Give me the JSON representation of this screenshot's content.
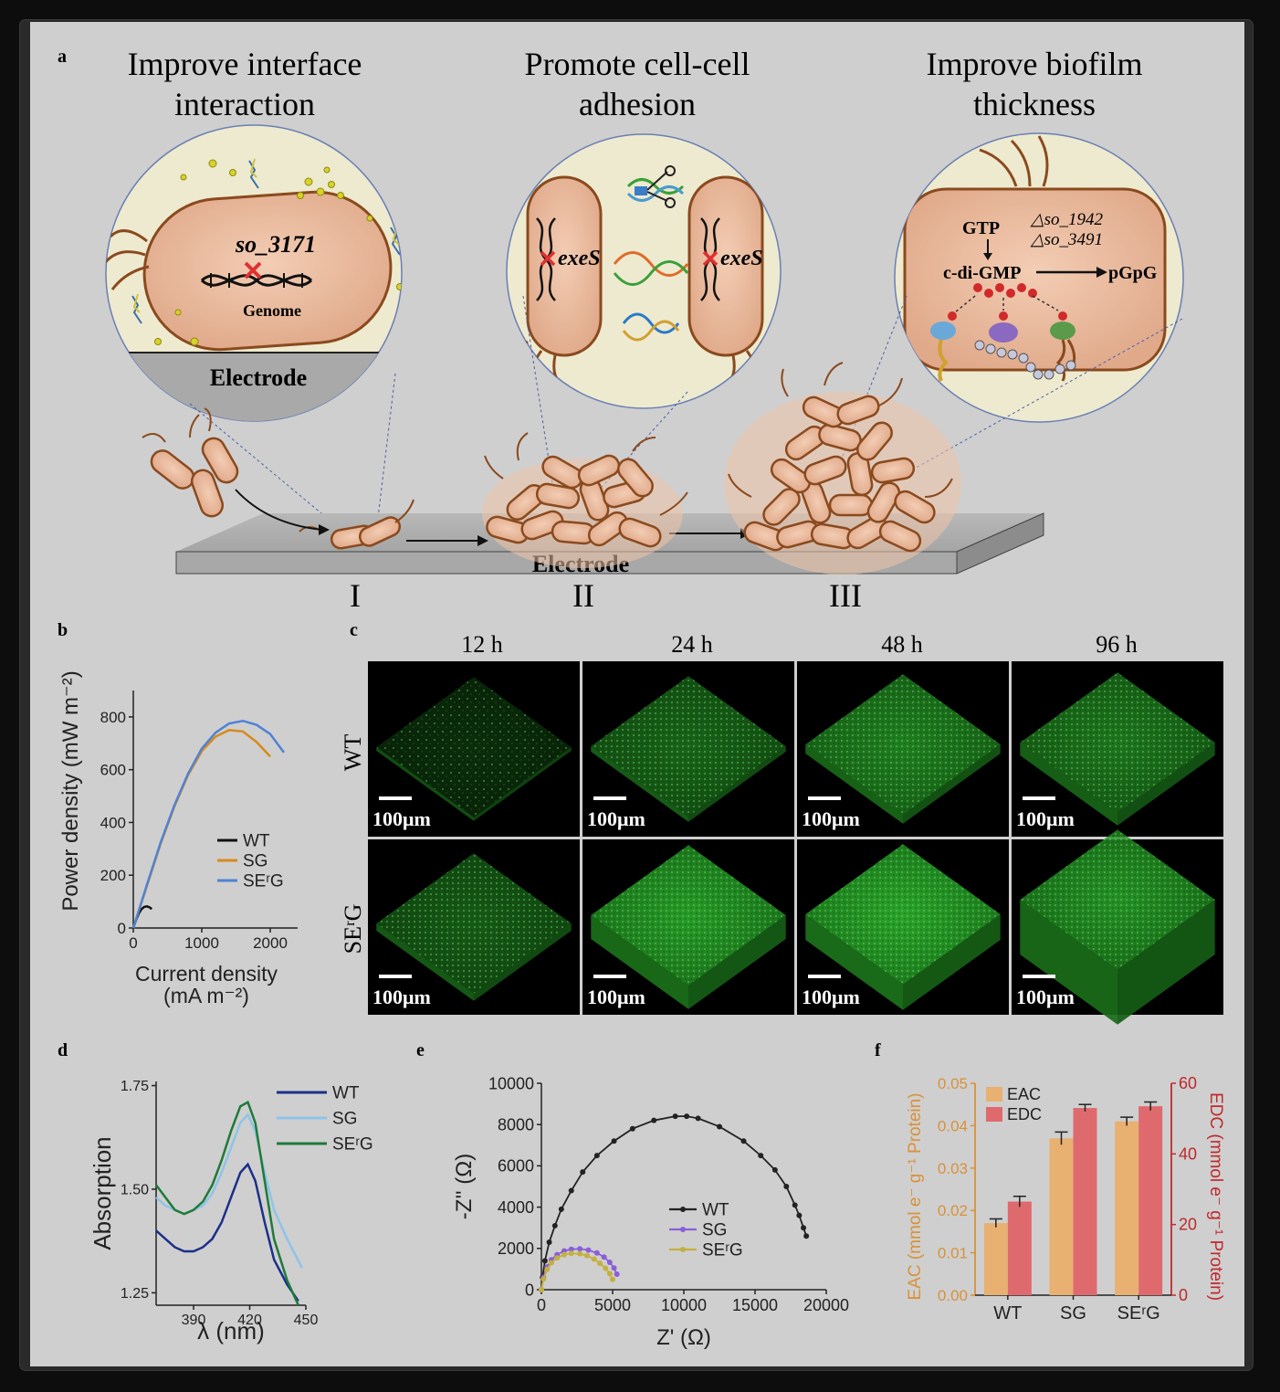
{
  "panel_a": {
    "letter": "a",
    "titles": [
      [
        "Improve interface",
        "interaction"
      ],
      [
        "Promote cell-cell",
        "adhesion"
      ],
      [
        "Improve biofilm",
        "thickness"
      ]
    ],
    "circle1": {
      "gene": "so_3171",
      "genome": "Genome",
      "electrode": "Electrode"
    },
    "circle2": {
      "gene_left": "exeS",
      "gene_right": "exeS"
    },
    "circle3": {
      "gtp": "GTP",
      "del1": "△so_1942",
      "del2": "△so_3491",
      "cdigmp": "c-di-GMP",
      "pgpg": "pGpG"
    },
    "electrode_label": "Electrode",
    "stages": [
      "I",
      "II",
      "III"
    ]
  },
  "panel_b": {
    "letter": "b",
    "chart_data": {
      "type": "line",
      "xlabel": "Current density (mA m⁻²)",
      "xlabel_lines": [
        "Current density",
        "(mA m⁻²)"
      ],
      "ylabel": "Power density (mW m⁻²)",
      "xlim": [
        0,
        2400
      ],
      "ylim": [
        0,
        900
      ],
      "x_ticks": [
        "0",
        "1000",
        "2000"
      ],
      "y_ticks": [
        "0",
        "200",
        "400",
        "600",
        "800"
      ],
      "series": [
        {
          "name": "WT",
          "color": "#111111",
          "points": [
            [
              0,
              0
            ],
            [
              40,
              30
            ],
            [
              80,
              55
            ],
            [
              120,
              72
            ],
            [
              160,
              80
            ],
            [
              200,
              82
            ],
            [
              240,
              78
            ],
            [
              270,
              72
            ]
          ]
        },
        {
          "name": "SG",
          "color": "#d88a1a",
          "points": [
            [
              0,
              0
            ],
            [
              200,
              160
            ],
            [
              400,
              320
            ],
            [
              600,
              460
            ],
            [
              800,
              580
            ],
            [
              1000,
              670
            ],
            [
              1200,
              725
            ],
            [
              1400,
              750
            ],
            [
              1600,
              745
            ],
            [
              1800,
              705
            ],
            [
              2000,
              650
            ]
          ]
        },
        {
          "name": "SEʳG",
          "color": "#4f82d6",
          "points": [
            [
              0,
              0
            ],
            [
              200,
              165
            ],
            [
              400,
              325
            ],
            [
              600,
              465
            ],
            [
              800,
              585
            ],
            [
              1000,
              680
            ],
            [
              1200,
              740
            ],
            [
              1400,
              775
            ],
            [
              1600,
              785
            ],
            [
              1800,
              770
            ],
            [
              2000,
              735
            ],
            [
              2200,
              665
            ]
          ]
        }
      ]
    }
  },
  "panel_c": {
    "letter": "c",
    "times": [
      "12 h",
      "24 h",
      "48 h",
      "96 h"
    ],
    "rows": [
      "WT",
      "SEʳG"
    ],
    "scale_label": "100μm"
  },
  "panel_d": {
    "letter": "d",
    "chart_data": {
      "type": "line",
      "xlabel": "λ (nm)",
      "ylabel": "Absorption",
      "xlim": [
        370,
        450
      ],
      "ylim": [
        1.22,
        1.76
      ],
      "x_ticks": [
        "390",
        "420",
        "450"
      ],
      "y_ticks": [
        "1.25",
        "1.50",
        "1.75"
      ],
      "series": [
        {
          "name": "WT",
          "color": "#1b2f8a",
          "points": [
            [
              370,
              1.4
            ],
            [
              375,
              1.38
            ],
            [
              380,
              1.36
            ],
            [
              385,
              1.35
            ],
            [
              390,
              1.35
            ],
            [
              395,
              1.36
            ],
            [
              400,
              1.38
            ],
            [
              405,
              1.42
            ],
            [
              410,
              1.48
            ],
            [
              415,
              1.54
            ],
            [
              419,
              1.56
            ],
            [
              423,
              1.52
            ],
            [
              428,
              1.42
            ],
            [
              433,
              1.33
            ],
            [
              440,
              1.27
            ],
            [
              446,
              1.23
            ]
          ]
        },
        {
          "name": "SG",
          "color": "#8ec4e8",
          "points": [
            [
              370,
              1.48
            ],
            [
              375,
              1.46
            ],
            [
              380,
              1.45
            ],
            [
              385,
              1.44
            ],
            [
              390,
              1.45
            ],
            [
              395,
              1.46
            ],
            [
              400,
              1.49
            ],
            [
              405,
              1.54
            ],
            [
              410,
              1.6
            ],
            [
              415,
              1.66
            ],
            [
              419,
              1.68
            ],
            [
              423,
              1.64
            ],
            [
              428,
              1.54
            ],
            [
              433,
              1.45
            ],
            [
              440,
              1.38
            ],
            [
              448,
              1.31
            ]
          ]
        },
        {
          "name": "SEʳG",
          "color": "#1f7a3a",
          "points": [
            [
              370,
              1.51
            ],
            [
              375,
              1.48
            ],
            [
              380,
              1.45
            ],
            [
              385,
              1.44
            ],
            [
              390,
              1.45
            ],
            [
              395,
              1.47
            ],
            [
              400,
              1.51
            ],
            [
              405,
              1.57
            ],
            [
              410,
              1.64
            ],
            [
              415,
              1.7
            ],
            [
              419,
              1.71
            ],
            [
              423,
              1.66
            ],
            [
              428,
              1.52
            ],
            [
              433,
              1.38
            ],
            [
              440,
              1.28
            ],
            [
              446,
              1.22
            ]
          ]
        }
      ]
    }
  },
  "panel_e": {
    "letter": "e",
    "chart_data": {
      "type": "scatter",
      "xlabel": "Z' (Ω)",
      "ylabel": "-Z'' (Ω)",
      "xlim": [
        0,
        20000
      ],
      "ylim": [
        0,
        10000
      ],
      "x_ticks": [
        "0",
        "5000",
        "10000",
        "15000",
        "20000"
      ],
      "y_ticks": [
        "0",
        "2000",
        "4000",
        "6000",
        "8000",
        "10000"
      ],
      "series": [
        {
          "name": "WT",
          "color": "#222222",
          "points": [
            [
              0,
              0
            ],
            [
              80,
              600
            ],
            [
              250,
              1400
            ],
            [
              550,
              2300
            ],
            [
              950,
              3100
            ],
            [
              1400,
              3900
            ],
            [
              2100,
              4800
            ],
            [
              2900,
              5700
            ],
            [
              3900,
              6500
            ],
            [
              5100,
              7200
            ],
            [
              6400,
              7800
            ],
            [
              7900,
              8200
            ],
            [
              9400,
              8400
            ],
            [
              10200,
              8400
            ],
            [
              11000,
              8300
            ],
            [
              12500,
              7900
            ],
            [
              14200,
              7200
            ],
            [
              15400,
              6500
            ],
            [
              16400,
              5800
            ],
            [
              17200,
              5000
            ],
            [
              17800,
              4100
            ],
            [
              18100,
              3600
            ],
            [
              18400,
              3000
            ],
            [
              18600,
              2600
            ]
          ]
        },
        {
          "name": "SG",
          "color": "#8a5fd8",
          "points": [
            [
              0,
              0
            ],
            [
              150,
              600
            ],
            [
              400,
              1100
            ],
            [
              700,
              1450
            ],
            [
              1100,
              1700
            ],
            [
              1600,
              1880
            ],
            [
              2100,
              1960
            ],
            [
              2700,
              1980
            ],
            [
              3300,
              1920
            ],
            [
              3900,
              1780
            ],
            [
              4400,
              1580
            ],
            [
              4800,
              1330
            ],
            [
              5100,
              1050
            ],
            [
              5300,
              750
            ]
          ]
        },
        {
          "name": "SEʳG",
          "color": "#c4b040",
          "points": [
            [
              0,
              0
            ],
            [
              150,
              520
            ],
            [
              400,
              980
            ],
            [
              700,
              1300
            ],
            [
              1100,
              1540
            ],
            [
              1600,
              1700
            ],
            [
              2100,
              1760
            ],
            [
              2700,
              1740
            ],
            [
              3200,
              1650
            ],
            [
              3700,
              1480
            ],
            [
              4100,
              1280
            ],
            [
              4500,
              1040
            ],
            [
              4800,
              780
            ],
            [
              5000,
              500
            ]
          ]
        }
      ]
    }
  },
  "panel_f": {
    "letter": "f",
    "chart_data": {
      "type": "bar",
      "categories": [
        "WT",
        "SG",
        "SEʳG"
      ],
      "left_axis": {
        "label": "EAC (mmol e⁻ g⁻¹ Protein)",
        "lim": [
          0,
          0.05
        ],
        "ticks": [
          "0.00",
          "0.01",
          "0.02",
          "0.03",
          "0.04",
          "0.05"
        ],
        "color": "#d9913a"
      },
      "right_axis": {
        "label": "EDC (mmol e⁻ g⁻¹ Protein)",
        "lim": [
          0,
          60
        ],
        "ticks": [
          "0",
          "20",
          "40",
          "60"
        ],
        "color": "#c0282b"
      },
      "series": [
        {
          "name": "EAC",
          "axis": "left",
          "color": "#e8b071",
          "values": [
            0.017,
            0.037,
            0.041
          ],
          "errors": [
            0.001,
            0.0015,
            0.001
          ]
        },
        {
          "name": "EDC",
          "axis": "right",
          "color": "#df6a6e",
          "values": [
            26.5,
            53,
            53.5
          ],
          "errors": [
            1.5,
            1.0,
            1.2
          ]
        }
      ]
    }
  }
}
